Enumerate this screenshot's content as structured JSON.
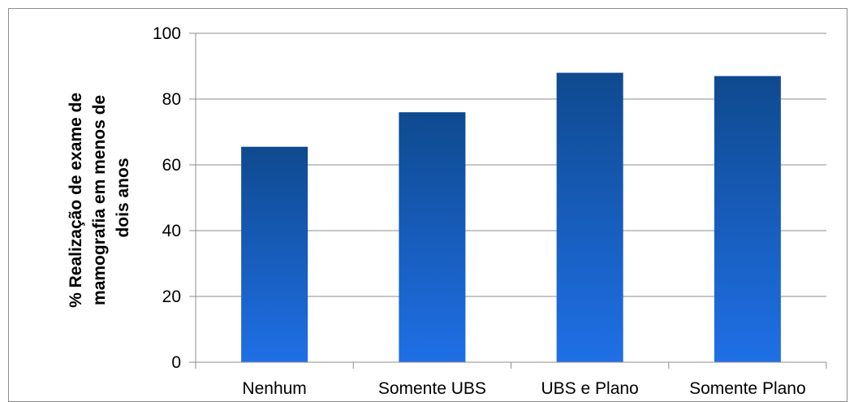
{
  "chart_data": {
    "type": "bar",
    "title": "",
    "xlabel": "",
    "ylabel_lines": [
      "% Realização de exame de",
      "mamografia em menos de",
      "dois anos"
    ],
    "categories": [
      "Nenhum",
      "Somente UBS",
      "UBS e Plano",
      "Somente Plano"
    ],
    "values": [
      65.5,
      76,
      88,
      87
    ],
    "ylim": [
      0,
      100
    ],
    "yticks": [
      0,
      20,
      40,
      60,
      80,
      100
    ],
    "grid": true,
    "legend": "none",
    "colors": {
      "bar_top": "#0f4a8f",
      "bar_bottom": "#1f6fe6",
      "grid": "#8c8c8c",
      "axis": "#8c8c8c"
    }
  }
}
